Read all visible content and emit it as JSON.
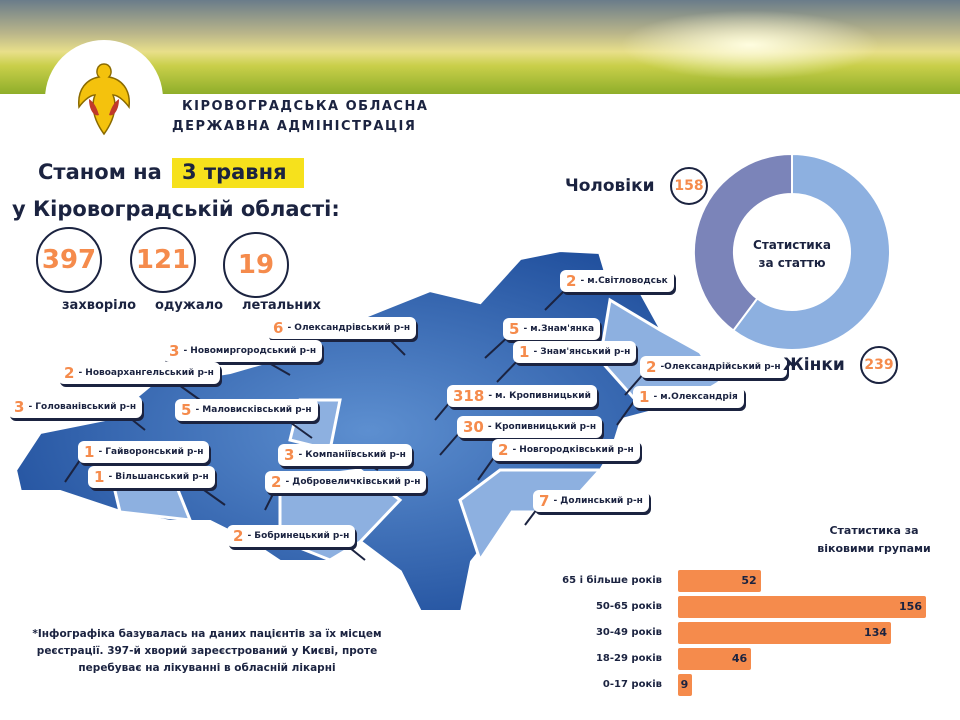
{
  "header": {
    "org_line1": "КІРОВОГРАДСЬКА ОБЛАСНА",
    "org_line2": "ДЕРЖАВНА АДМІНІСТРАЦІЯ",
    "logo": "golden-eagle-emblem"
  },
  "title": {
    "prefix": "Станом на",
    "date": "3 травня",
    "region": "у Кіровоградській області:"
  },
  "stats": [
    {
      "value": "397",
      "label": "захворіло"
    },
    {
      "value": "121",
      "label": "одужало"
    },
    {
      "value": "19",
      "label": "летальних"
    }
  ],
  "districts": [
    {
      "count": "6",
      "name": "- Олександрівський р-н"
    },
    {
      "count": "3",
      "name": "- Новомиргородський р-н"
    },
    {
      "count": "2",
      "name": "- Новоархангельський р-н"
    },
    {
      "count": "3",
      "name": "- Голованівський р-н"
    },
    {
      "count": "5",
      "name": "- Маловисківський р-н"
    },
    {
      "count": "1",
      "name": "- Гайворонський р-н"
    },
    {
      "count": "1",
      "name": "- Вільшанський р-н"
    },
    {
      "count": "3",
      "name": "- Компаніївський р-н"
    },
    {
      "count": "2",
      "name": "- Добровеличківський р-н"
    },
    {
      "count": "2",
      "name": "- Бобринецький р-н"
    },
    {
      "count": "2",
      "name": "- м.Світловодськ"
    },
    {
      "count": "5",
      "name": "- м.Знам'янка"
    },
    {
      "count": "1",
      "name": "- Знам'янський р-н"
    },
    {
      "count": "318",
      "name": "- м. Кропивницький"
    },
    {
      "count": "30",
      "name": "- Кропивницький р-н"
    },
    {
      "count": "2",
      "name": "- Новгородківський р-н"
    },
    {
      "count": "7",
      "name": "- Долинський р-н"
    },
    {
      "count": "2",
      "name": "-Олександрійський р-н"
    },
    {
      "count": "1",
      "name": "- м.Олександрія"
    }
  ],
  "chart_data": [
    {
      "type": "pie",
      "title": "Статистика за статтю",
      "categories": [
        "Чоловіки",
        "Жінки"
      ],
      "values": [
        158,
        239
      ],
      "colors": [
        "#7b84b9",
        "#8db0e0"
      ]
    },
    {
      "type": "bar",
      "title": "Статистика за віковими групами",
      "categories": [
        "65 і більше років",
        "50-65 років",
        "30-49 років",
        "18-29 років",
        "0-17 років"
      ],
      "values": [
        52,
        156,
        134,
        46,
        9
      ],
      "color": "#f58b4c"
    }
  ],
  "gender": {
    "men_label": "Чоловіки",
    "men": "158",
    "women_label": "Жінки",
    "women": "239",
    "center_line1": "Статистика",
    "center_line2": "за статтю"
  },
  "age": {
    "title_line1": "Статистика за",
    "title_line2": "віковими групами"
  },
  "note": "*Інфографіка базувалась на даних пацієнтів за їх місцем реєстрації. 397-й хворий зареєстрований у Києві, проте перебуває на лікуванні в обласній лікарні",
  "colors": {
    "accent": "#f58b4c",
    "highlight": "#f6e11c",
    "map": "#2d63b0",
    "text": "#1b2340"
  }
}
